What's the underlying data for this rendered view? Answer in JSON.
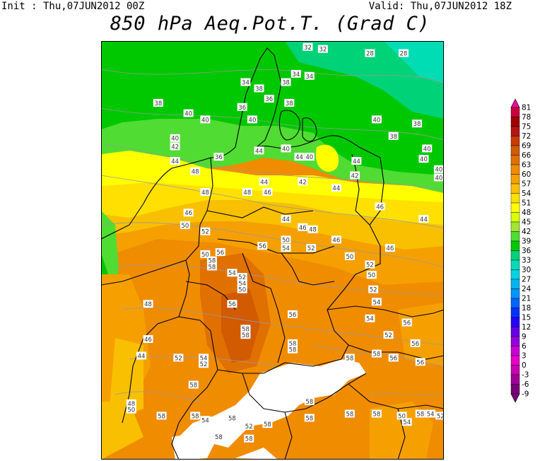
{
  "header": {
    "init_label": "Init : Thu,07JUN2012 00Z",
    "valid_label": "Valid: Thu,07JUN2012 18Z",
    "title": "850 hPa Aeq.Pot.T. (Grad C)"
  },
  "legend": {
    "values": [
      "81",
      "78",
      "75",
      "72",
      "69",
      "66",
      "63",
      "60",
      "57",
      "54",
      "51",
      "48",
      "45",
      "42",
      "39",
      "36",
      "33",
      "30",
      "27",
      "24",
      "21",
      "18",
      "15",
      "12",
      "9",
      "6",
      "3",
      "0",
      "-3",
      "-6",
      "-9"
    ],
    "colors": [
      "#f000a0",
      "#c80040",
      "#a00000",
      "#b41414",
      "#c83c00",
      "#d25a00",
      "#e07000",
      "#f08c00",
      "#f5a000",
      "#f8c000",
      "#ffe000",
      "#ffff00",
      "#d8ff00",
      "#a0e632",
      "#50dc32",
      "#00c800",
      "#00d278",
      "#00dcb4",
      "#00d2e6",
      "#00b4f0",
      "#0096ff",
      "#0064ff",
      "#0032ff",
      "#2800ff",
      "#6400e6",
      "#9600dc",
      "#c800d2",
      "#e600c8",
      "#c800b4",
      "#a00096",
      "#780078"
    ]
  },
  "map_labels": [
    {
      "t": "32",
      "lon": 11.05,
      "lat": 56.45
    },
    {
      "t": "32",
      "lon": 11.5,
      "lat": 56.4
    },
    {
      "t": "28",
      "lon": 12.9,
      "lat": 56.3
    },
    {
      "t": "28",
      "lon": 13.9,
      "lat": 56.3
    },
    {
      "t": "34",
      "lon": 9.2,
      "lat": 55.6
    },
    {
      "t": "34",
      "lon": 10.7,
      "lat": 55.8
    },
    {
      "t": "34",
      "lon": 11.1,
      "lat": 55.75
    },
    {
      "t": "38",
      "lon": 9.6,
      "lat": 55.45
    },
    {
      "t": "38",
      "lon": 10.4,
      "lat": 55.6
    },
    {
      "t": "38",
      "lon": 6.6,
      "lat": 55.1
    },
    {
      "t": "36",
      "lon": 9.1,
      "lat": 55.0
    },
    {
      "t": "36",
      "lon": 9.9,
      "lat": 55.2
    },
    {
      "t": "38",
      "lon": 10.5,
      "lat": 55.1
    },
    {
      "t": "40",
      "lon": 7.5,
      "lat": 54.85
    },
    {
      "t": "40",
      "lon": 8.0,
      "lat": 54.7
    },
    {
      "t": "40",
      "lon": 9.4,
      "lat": 54.7
    },
    {
      "t": "40",
      "lon": 13.1,
      "lat": 54.7
    },
    {
      "t": "38",
      "lon": 14.3,
      "lat": 54.6
    },
    {
      "t": "38",
      "lon": 13.6,
      "lat": 54.3
    },
    {
      "t": "40",
      "lon": 14.6,
      "lat": 54.0
    },
    {
      "t": "40",
      "lon": 14.5,
      "lat": 53.75
    },
    {
      "t": "40",
      "lon": 14.95,
      "lat": 53.5
    },
    {
      "t": "40",
      "lon": 14.95,
      "lat": 53.3
    },
    {
      "t": "40",
      "lon": 7.1,
      "lat": 54.25
    },
    {
      "t": "42",
      "lon": 7.1,
      "lat": 54.05
    },
    {
      "t": "44",
      "lon": 7.1,
      "lat": 53.7
    },
    {
      "t": "36",
      "lon": 8.4,
      "lat": 53.8
    },
    {
      "t": "44",
      "lon": 9.6,
      "lat": 53.95
    },
    {
      "t": "40",
      "lon": 10.4,
      "lat": 54.0
    },
    {
      "t": "44",
      "lon": 10.8,
      "lat": 53.8
    },
    {
      "t": "40",
      "lon": 11.1,
      "lat": 53.8
    },
    {
      "t": "44",
      "lon": 12.5,
      "lat": 53.7
    },
    {
      "t": "42",
      "lon": 12.45,
      "lat": 53.35
    },
    {
      "t": "48",
      "lon": 7.7,
      "lat": 53.45
    },
    {
      "t": "44",
      "lon": 9.75,
      "lat": 53.2
    },
    {
      "t": "42",
      "lon": 10.9,
      "lat": 53.2
    },
    {
      "t": "44",
      "lon": 11.9,
      "lat": 53.05
    },
    {
      "t": "48",
      "lon": 8.0,
      "lat": 52.95
    },
    {
      "t": "48",
      "lon": 9.25,
      "lat": 52.95
    },
    {
      "t": "46",
      "lon": 9.85,
      "lat": 52.95
    },
    {
      "t": "46",
      "lon": 13.2,
      "lat": 52.6
    },
    {
      "t": "44",
      "lon": 14.5,
      "lat": 52.3
    },
    {
      "t": "46",
      "lon": 7.5,
      "lat": 52.45
    },
    {
      "t": "50",
      "lon": 7.4,
      "lat": 52.15
    },
    {
      "t": "52",
      "lon": 8.0,
      "lat": 52.0
    },
    {
      "t": "44",
      "lon": 10.4,
      "lat": 52.3
    },
    {
      "t": "46",
      "lon": 10.9,
      "lat": 52.1
    },
    {
      "t": "48",
      "lon": 11.2,
      "lat": 52.05
    },
    {
      "t": "46",
      "lon": 11.9,
      "lat": 51.8
    },
    {
      "t": "46",
      "lon": 13.5,
      "lat": 51.6
    },
    {
      "t": "50",
      "lon": 10.4,
      "lat": 51.8
    },
    {
      "t": "54",
      "lon": 10.4,
      "lat": 51.6
    },
    {
      "t": "50",
      "lon": 8.0,
      "lat": 51.45
    },
    {
      "t": "56",
      "lon": 8.45,
      "lat": 51.5
    },
    {
      "t": "56",
      "lon": 9.7,
      "lat": 51.65
    },
    {
      "t": "52",
      "lon": 11.15,
      "lat": 51.6
    },
    {
      "t": "58",
      "lon": 8.2,
      "lat": 51.3
    },
    {
      "t": "58",
      "lon": 8.2,
      "lat": 51.15
    },
    {
      "t": "50",
      "lon": 12.3,
      "lat": 51.4
    },
    {
      "t": "52",
      "lon": 12.9,
      "lat": 51.2
    },
    {
      "t": "50",
      "lon": 12.95,
      "lat": 50.95
    },
    {
      "t": "54",
      "lon": 8.8,
      "lat": 51.0
    },
    {
      "t": "52",
      "lon": 9.1,
      "lat": 50.9
    },
    {
      "t": "54",
      "lon": 9.1,
      "lat": 50.75
    },
    {
      "t": "50",
      "lon": 9.1,
      "lat": 50.6
    },
    {
      "t": "52",
      "lon": 13.0,
      "lat": 50.6
    },
    {
      "t": "54",
      "lon": 13.1,
      "lat": 50.3
    },
    {
      "t": "48",
      "lon": 6.3,
      "lat": 50.25
    },
    {
      "t": "56",
      "lon": 8.8,
      "lat": 50.25
    },
    {
      "t": "56",
      "lon": 10.6,
      "lat": 50.0
    },
    {
      "t": "54",
      "lon": 12.9,
      "lat": 49.9
    },
    {
      "t": "56",
      "lon": 14.0,
      "lat": 49.8
    },
    {
      "t": "58",
      "lon": 9.2,
      "lat": 49.65
    },
    {
      "t": "58",
      "lon": 9.2,
      "lat": 49.5
    },
    {
      "t": "58",
      "lon": 10.6,
      "lat": 49.3
    },
    {
      "t": "58",
      "lon": 10.6,
      "lat": 49.15
    },
    {
      "t": "52",
      "lon": 13.45,
      "lat": 49.5
    },
    {
      "t": "56",
      "lon": 14.25,
      "lat": 49.3
    },
    {
      "t": "46",
      "lon": 6.3,
      "lat": 49.4
    },
    {
      "t": "44",
      "lon": 6.1,
      "lat": 49.0
    },
    {
      "t": "52",
      "lon": 7.2,
      "lat": 48.95
    },
    {
      "t": "54",
      "lon": 7.95,
      "lat": 48.95
    },
    {
      "t": "52",
      "lon": 7.95,
      "lat": 48.8
    },
    {
      "t": "58",
      "lon": 12.3,
      "lat": 48.95
    },
    {
      "t": "58",
      "lon": 13.1,
      "lat": 49.05
    },
    {
      "t": "56",
      "lon": 13.6,
      "lat": 48.95
    },
    {
      "t": "56",
      "lon": 14.4,
      "lat": 48.85
    },
    {
      "t": "58",
      "lon": 7.65,
      "lat": 48.3
    },
    {
      "t": "58",
      "lon": 11.1,
      "lat": 47.9
    },
    {
      "t": "58",
      "lon": 12.3,
      "lat": 47.6
    },
    {
      "t": "58",
      "lon": 13.1,
      "lat": 47.6
    },
    {
      "t": "58",
      "lon": 14.4,
      "lat": 47.6
    },
    {
      "t": "48",
      "lon": 5.8,
      "lat": 47.85
    },
    {
      "t": "50",
      "lon": 5.8,
      "lat": 47.7
    },
    {
      "t": "58",
      "lon": 6.7,
      "lat": 47.55
    },
    {
      "t": "58",
      "lon": 7.7,
      "lat": 47.55
    },
    {
      "t": "54",
      "lon": 8.0,
      "lat": 47.45
    },
    {
      "t": "58",
      "lon": 8.8,
      "lat": 47.5
    },
    {
      "t": "52",
      "lon": 9.3,
      "lat": 47.3
    },
    {
      "t": "58",
      "lon": 9.85,
      "lat": 47.35
    },
    {
      "t": "58",
      "lon": 11.1,
      "lat": 47.5
    },
    {
      "t": "50",
      "lon": 13.85,
      "lat": 47.55
    },
    {
      "t": "54",
      "lon": 14.0,
      "lat": 47.4
    },
    {
      "t": "54",
      "lon": 14.7,
      "lat": 47.6
    },
    {
      "t": "52",
      "lon": 15.0,
      "lat": 47.55
    },
    {
      "t": "58",
      "lon": 8.4,
      "lat": 47.05
    },
    {
      "t": "58",
      "lon": 9.3,
      "lat": 47.0
    }
  ]
}
